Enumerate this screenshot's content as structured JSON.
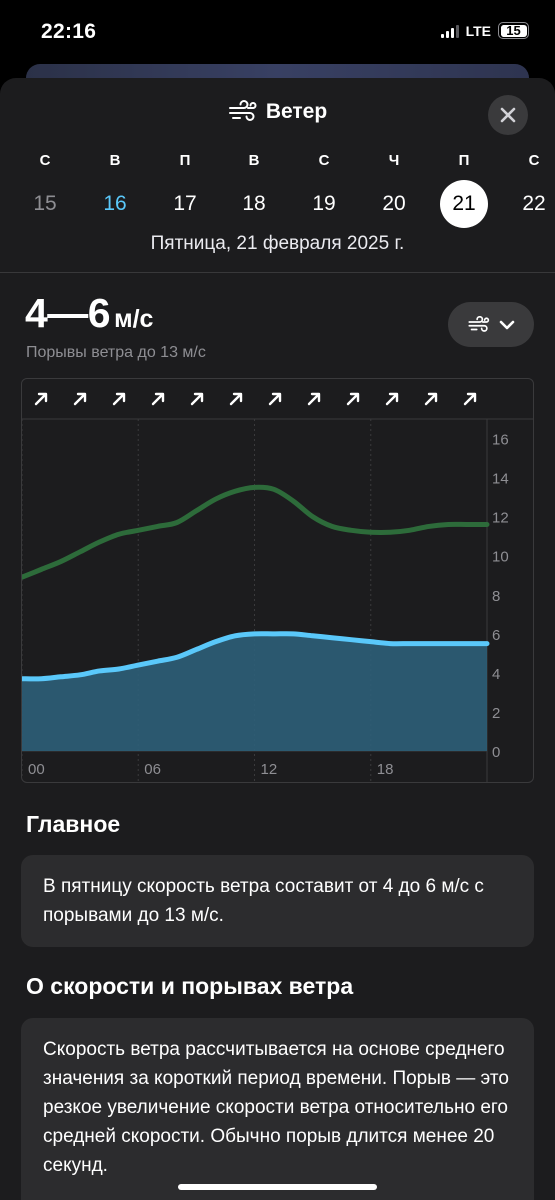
{
  "status": {
    "time": "22:16",
    "network": "LTE",
    "battery": "15"
  },
  "header": {
    "title": "Ветер",
    "title_icon": "wind-icon",
    "close_icon": "close-icon"
  },
  "days": [
    {
      "letter": "С",
      "date": "15",
      "state": "past"
    },
    {
      "letter": "В",
      "date": "16",
      "state": "today"
    },
    {
      "letter": "П",
      "date": "17",
      "state": "normal"
    },
    {
      "letter": "В",
      "date": "18",
      "state": "normal"
    },
    {
      "letter": "С",
      "date": "19",
      "state": "normal"
    },
    {
      "letter": "Ч",
      "date": "20",
      "state": "normal"
    },
    {
      "letter": "П",
      "date": "21",
      "state": "selected"
    },
    {
      "letter": "С",
      "date": "22",
      "state": "normal"
    }
  ],
  "date_caption": "Пятница, 21 февраля 2025 г.",
  "summary": {
    "speed": "4—6",
    "unit": "м/с",
    "gusts": "Порывы ветра до 13 м/с"
  },
  "selector": {
    "icon": "wind-icon",
    "chevron": "chevron-down-icon"
  },
  "chart_data": {
    "type": "area",
    "x": [
      0,
      1,
      2,
      3,
      4,
      5,
      6,
      7,
      8,
      9,
      10,
      11,
      12,
      13,
      14,
      15,
      16,
      17,
      18,
      19,
      20,
      21,
      22,
      23,
      24
    ],
    "xticks": [
      "00",
      "06",
      "12",
      "18"
    ],
    "yticks": [
      "0",
      "2",
      "4",
      "6",
      "8",
      "10",
      "12",
      "14",
      "16"
    ],
    "ylim": [
      0,
      17
    ],
    "xlim": [
      0,
      24
    ],
    "direction_icons": 12,
    "direction_icon": "arrow-northeast-icon",
    "series": [
      {
        "kind": "gusts",
        "color": "#2d6b3a",
        "values": [
          8.9,
          9.3,
          9.7,
          10.2,
          10.7,
          11.1,
          11.3,
          11.5,
          11.7,
          12.3,
          12.9,
          13.3,
          13.5,
          13.4,
          12.8,
          12.0,
          11.5,
          11.3,
          11.2,
          11.2,
          11.3,
          11.5,
          11.6,
          11.6,
          11.6
        ]
      },
      {
        "kind": "speed",
        "color": "#5ac8fa",
        "fill": "#2d5f78",
        "values": [
          3.7,
          3.7,
          3.8,
          3.9,
          4.1,
          4.2,
          4.4,
          4.6,
          4.8,
          5.2,
          5.6,
          5.9,
          6.0,
          6.0,
          6.0,
          5.9,
          5.8,
          5.7,
          5.6,
          5.5,
          5.5,
          5.5,
          5.5,
          5.5,
          5.5
        ]
      }
    ]
  },
  "main": {
    "title": "Главное",
    "text": "В пятницу скорость ветра составит от 4 до 6 м/с с порывами до 13 м/с."
  },
  "about": {
    "title": "О скорости и порывах ветра",
    "text": "Скорость ветра рассчитывается на основе среднего значения за короткий период времени. Порыв — это резкое увеличение скорости ветра относительно его средней скорости. Обычно порыв длится менее 20 секунд."
  }
}
